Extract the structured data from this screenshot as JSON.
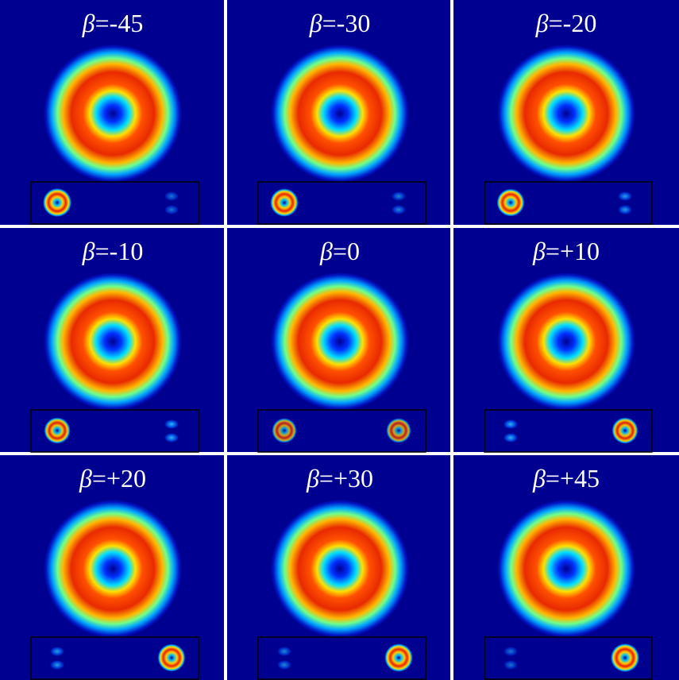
{
  "panels": [
    {
      "symbol": "β",
      "label": "=-45"
    },
    {
      "symbol": "β",
      "label": "=-30"
    },
    {
      "symbol": "β",
      "label": "=-20"
    },
    {
      "symbol": "β",
      "label": "=-10"
    },
    {
      "symbol": "β",
      "label": "=0"
    },
    {
      "symbol": "β",
      "label": "=+10"
    },
    {
      "symbol": "β",
      "label": "=+20"
    },
    {
      "symbol": "β",
      "label": "=+30"
    },
    {
      "symbol": "β",
      "label": "=+45"
    }
  ]
}
